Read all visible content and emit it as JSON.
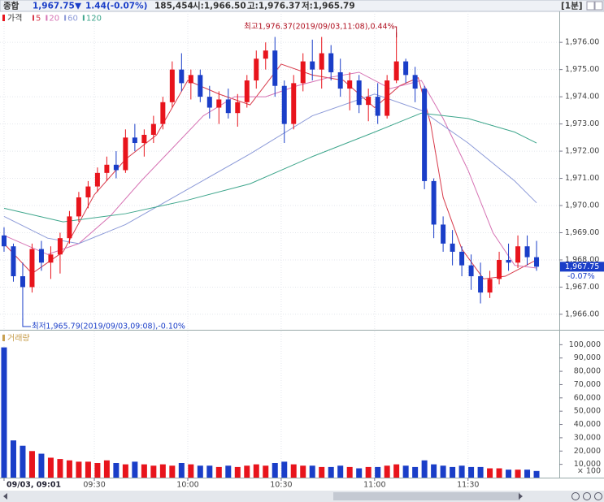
{
  "header": {
    "market": "종합",
    "price": "1,967.75",
    "arrow": "▼",
    "change": "1.44",
    "change_pct": "(-0.07%)",
    "volume": "185,454",
    "open": "시:1,966.50",
    "high": "고:1,976.37",
    "low": "저:1,965.79",
    "interval": "[1분]"
  },
  "chart_data": [
    {
      "type": "candlestick",
      "name": "가격",
      "x": [
        1,
        4,
        7,
        10,
        13,
        16,
        19,
        22,
        25,
        28,
        31,
        34,
        37,
        40,
        43,
        46,
        49,
        52,
        55,
        58,
        61,
        64,
        67,
        70,
        73,
        76,
        79,
        82,
        85,
        88,
        91,
        94,
        97,
        100,
        103,
        106,
        109,
        112,
        115,
        118,
        121,
        124,
        127,
        130,
        133,
        136,
        139,
        142,
        145,
        148,
        151,
        154,
        157,
        160,
        163,
        166,
        169,
        172
      ],
      "open": [
        1968.9,
        1968.5,
        1967.4,
        1967.0,
        1968.4,
        1967.9,
        1968.2,
        1968.8,
        1969.6,
        1970.3,
        1970.7,
        1971.2,
        1971.5,
        1971.3,
        1972.5,
        1972.3,
        1972.6,
        1973.0,
        1973.8,
        1975.0,
        1974.5,
        1974.8,
        1974.0,
        1973.6,
        1973.9,
        1973.4,
        1973.8,
        1974.6,
        1975.4,
        1975.7,
        1974.4,
        1973.0,
        1974.5,
        1975.3,
        1975.0,
        1975.6,
        1974.9,
        1974.3,
        1974.6,
        1973.7,
        1974.0,
        1973.3,
        1974.6,
        1975.3,
        1974.8,
        1974.3,
        1970.9,
        1969.3,
        1968.6,
        1968.3,
        1967.8,
        1967.4,
        1966.8,
        1967.3,
        1968.0,
        1967.9,
        1968.5,
        1968.1
      ],
      "high": [
        1969.2,
        1968.6,
        1967.9,
        1968.6,
        1968.7,
        1968.5,
        1969.0,
        1969.8,
        1970.5,
        1970.9,
        1971.4,
        1971.8,
        1972.0,
        1972.8,
        1973.0,
        1972.8,
        1973.3,
        1974.0,
        1975.3,
        1975.6,
        1975.0,
        1975.0,
        1974.4,
        1974.2,
        1974.3,
        1974.1,
        1974.8,
        1975.7,
        1976.0,
        1976.2,
        1974.6,
        1974.8,
        1975.6,
        1976.1,
        1976.2,
        1975.9,
        1975.4,
        1974.9,
        1974.8,
        1974.3,
        1974.5,
        1974.8,
        1976.37,
        1975.4,
        1975.1,
        1974.4,
        1971.0,
        1969.6,
        1969.1,
        1968.5,
        1968.2,
        1967.9,
        1967.6,
        1968.3,
        1968.6,
        1968.9,
        1968.9,
        1968.7
      ],
      "low": [
        1968.3,
        1967.2,
        1965.79,
        1966.8,
        1967.6,
        1967.3,
        1967.5,
        1968.6,
        1969.4,
        1969.9,
        1970.5,
        1970.9,
        1971.0,
        1971.2,
        1972.0,
        1971.8,
        1972.3,
        1972.8,
        1973.6,
        1974.2,
        1973.9,
        1973.8,
        1973.2,
        1973.0,
        1973.2,
        1972.9,
        1973.6,
        1974.3,
        1975.0,
        1974.0,
        1972.3,
        1972.8,
        1974.2,
        1974.6,
        1974.3,
        1974.6,
        1974.0,
        1973.5,
        1973.4,
        1973.1,
        1973.0,
        1973.2,
        1974.5,
        1974.5,
        1973.8,
        1970.6,
        1968.8,
        1968.3,
        1967.8,
        1967.4,
        1966.9,
        1966.4,
        1966.6,
        1967.1,
        1967.6,
        1967.7,
        1967.8,
        1967.6
      ],
      "close": [
        1968.5,
        1967.4,
        1967.0,
        1968.4,
        1967.9,
        1968.2,
        1968.8,
        1969.6,
        1970.3,
        1970.7,
        1971.2,
        1971.5,
        1971.3,
        1972.5,
        1972.3,
        1972.6,
        1973.0,
        1973.8,
        1975.0,
        1974.5,
        1974.8,
        1974.0,
        1973.6,
        1973.9,
        1973.4,
        1973.8,
        1974.6,
        1975.4,
        1975.7,
        1974.4,
        1973.0,
        1974.5,
        1975.3,
        1975.0,
        1975.6,
        1974.9,
        1974.3,
        1974.6,
        1973.7,
        1974.0,
        1973.3,
        1974.6,
        1975.3,
        1974.8,
        1974.3,
        1970.9,
        1969.3,
        1968.6,
        1968.3,
        1967.8,
        1967.4,
        1966.8,
        1967.3,
        1968.0,
        1967.9,
        1968.5,
        1968.1,
        1967.75
      ],
      "up_color": "#e8141c",
      "down_color": "#1a3ec8",
      "xlim": [
        -0.3,
        179.3
      ],
      "xticks": [
        {
          "value": 1,
          "label": "09/03, 09:01"
        },
        {
          "value": 30,
          "label": "09:30"
        },
        {
          "value": 60,
          "label": "10:00"
        },
        {
          "value": 90,
          "label": "10:30"
        },
        {
          "value": 120,
          "label": "11:00"
        },
        {
          "value": 150,
          "label": "11:30"
        }
      ],
      "ylim": [
        1965.46,
        1977.14
      ],
      "yticks": [
        {
          "value": 1966,
          "label": "1,966.00"
        },
        {
          "value": 1967,
          "label": "1,967.00"
        },
        {
          "value": 1968,
          "label": "1,968.00"
        },
        {
          "value": 1969,
          "label": "1,969.00"
        },
        {
          "value": 1970,
          "label": "1,970.00"
        },
        {
          "value": 1971,
          "label": "1,971.00"
        },
        {
          "value": 1972,
          "label": "1,972.00"
        },
        {
          "value": 1973,
          "label": "1,973.00"
        },
        {
          "value": 1974,
          "label": "1,974.00"
        },
        {
          "value": 1975,
          "label": "1,975.00"
        },
        {
          "value": 1976,
          "label": "1,976.00"
        }
      ],
      "grid": true,
      "overlays": [
        {
          "name": "5",
          "color": "#d83a4a",
          "x": [
            1,
            10,
            20,
            30,
            40,
            50,
            60,
            70,
            80,
            90,
            100,
            110,
            120,
            128,
            134,
            138,
            142,
            148,
            155,
            162,
            172
          ],
          "values": [
            1968.6,
            1967.5,
            1968.3,
            1970.4,
            1971.7,
            1972.6,
            1974.6,
            1974.1,
            1973.7,
            1975.2,
            1974.8,
            1974.6,
            1973.6,
            1974.4,
            1974.7,
            1973.0,
            1970.3,
            1968.4,
            1967.3,
            1967.4,
            1968.0
          ]
        },
        {
          "name": "20",
          "color": "#d673b4",
          "x": [
            1,
            15,
            25,
            35,
            45,
            55,
            65,
            75,
            85,
            95,
            105,
            115,
            125,
            135,
            142,
            150,
            158,
            165,
            172
          ],
          "values": [
            1968.9,
            1968.2,
            1968.6,
            1969.6,
            1970.9,
            1972.1,
            1973.3,
            1974.0,
            1974.0,
            1974.4,
            1974.7,
            1974.9,
            1974.3,
            1974.6,
            1973.2,
            1971.3,
            1969.0,
            1967.8,
            1967.7
          ]
        },
        {
          "name": "60",
          "color": "#8c9ad8",
          "x": [
            1,
            15,
            25,
            40,
            60,
            80,
            100,
            120,
            135,
            150,
            165,
            172
          ],
          "values": [
            1969.6,
            1968.8,
            1968.6,
            1969.3,
            1970.6,
            1971.9,
            1973.3,
            1974.1,
            1973.5,
            1972.3,
            1970.9,
            1970.1
          ]
        },
        {
          "name": "120",
          "color": "#3ea68c",
          "x": [
            1,
            20,
            40,
            60,
            80,
            100,
            120,
            135,
            150,
            165,
            172
          ],
          "values": [
            1969.9,
            1969.4,
            1969.7,
            1970.2,
            1970.8,
            1971.8,
            1972.7,
            1973.4,
            1973.2,
            1972.7,
            1972.3
          ]
        }
      ],
      "annotations": [
        {
          "text": "최고1,976.37(2019/09/03,11:08),0.44%"
        },
        {
          "text": "최저1,965.79(2019/09/03,09:08),-0.10%"
        }
      ],
      "last_price": {
        "value": 1967.75,
        "label": "1,967.75",
        "change": "-0.07%"
      }
    },
    {
      "type": "bar",
      "name": "거래량",
      "values": [
        98000,
        28000,
        24000,
        20000,
        18000,
        15000,
        14000,
        13000,
        12000,
        12000,
        11000,
        13000,
        11000,
        10000,
        12000,
        10000,
        9000,
        10000,
        9000,
        11000,
        10000,
        9000,
        9000,
        8000,
        9000,
        8000,
        9000,
        10000,
        9000,
        11000,
        12000,
        10000,
        9000,
        9000,
        8000,
        8000,
        9000,
        8000,
        7000,
        8000,
        8000,
        9000,
        10000,
        9000,
        8000,
        13000,
        10000,
        9000,
        8000,
        9000,
        8000,
        8000,
        7000,
        7000,
        6000,
        6000,
        6000,
        5000
      ],
      "ylim": [
        0,
        110000
      ],
      "yticks": [
        {
          "value": 10000,
          "label": "10,000"
        },
        {
          "value": 20000,
          "label": "20,000"
        },
        {
          "value": 30000,
          "label": "30,000"
        },
        {
          "value": 40000,
          "label": "40,000"
        },
        {
          "value": 50000,
          "label": "50,000"
        },
        {
          "value": 60000,
          "label": "60,000"
        },
        {
          "value": 70000,
          "label": "70,000"
        },
        {
          "value": 80000,
          "label": "80,000"
        },
        {
          "value": 90000,
          "label": "90,000"
        },
        {
          "value": 100000,
          "label": "100,000"
        }
      ],
      "unit_label": "× 100",
      "legend_color": "#c8a050"
    }
  ]
}
